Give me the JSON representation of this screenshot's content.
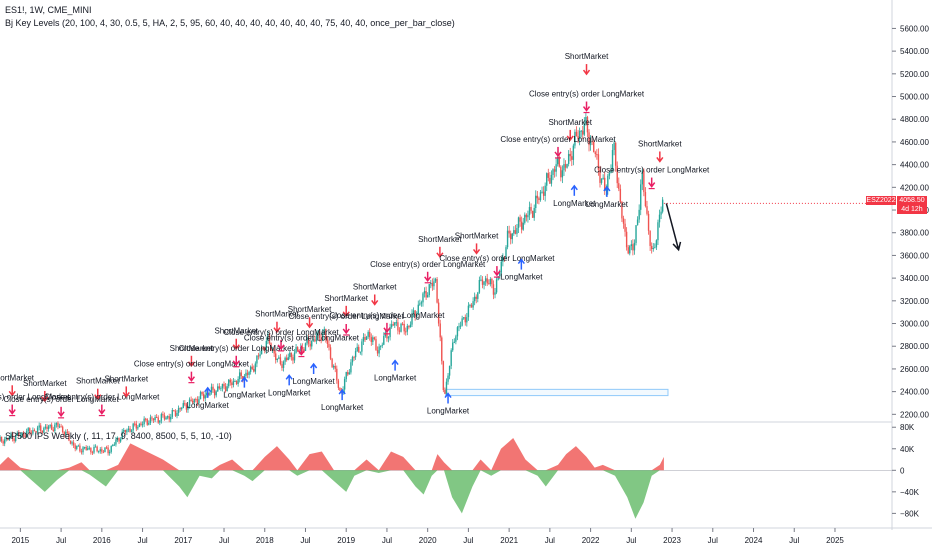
{
  "header": {
    "symbol_line": "ES1!, 1W, CME_MINI",
    "indicator_line": "Bj Key Levels (20, 100, 4, 30, 0.5, 5, HA, 2, 5, 95, 60, 40, 40, 40, 40, 40, 40, 40, 75, 40, 40, once_per_bar_close)",
    "lower_indicator_line": "SP500 IPS Weekly (, 11, 17, 9, 8400, 8500, 5, 5, 10, -10)"
  },
  "price_tag": {
    "symbol": "ESZ2022",
    "price": "4058.50",
    "countdown": "4d 12h"
  },
  "colors": {
    "bull": "#26a69a",
    "bear": "#ef5350",
    "long_arrow": "#2962ff",
    "short_arrow": "#f23645",
    "close_arrow": "#e91e63",
    "pos_area": "#ef5350",
    "neg_area": "#4caf50",
    "tag_bg": "#f23645"
  },
  "chart_data": [
    {
      "type": "candlestick",
      "title": "ES1!, 1W, CME_MINI",
      "x_labels": [
        "2015",
        "Jul",
        "2016",
        "Jul",
        "2017",
        "Jul",
        "2018",
        "Jul",
        "2019",
        "Jul",
        "2020",
        "Jul",
        "2021",
        "Jul",
        "2022",
        "Jul",
        "2023",
        "Jul",
        "2024",
        "Jul",
        "2025"
      ],
      "y_ticks": [
        "2200.00",
        "2400.00",
        "2600.00",
        "2800.00",
        "3000.00",
        "3200.00",
        "3400.00",
        "3600.00",
        "3800.00",
        "4000.00",
        "4200.00",
        "4400.00",
        "4600.00",
        "4800.00",
        "5000.00",
        "5200.00",
        "5400.00",
        "5600.00"
      ],
      "ylim": [
        2150,
        5780
      ],
      "x_range": [
        2014.75,
        2025.7
      ],
      "last_price": 4058.5,
      "price_path": [
        [
          2014.75,
          1960
        ],
        [
          2015.2,
          2060
        ],
        [
          2015.5,
          2100
        ],
        [
          2015.7,
          1900
        ],
        [
          2016.1,
          1880
        ],
        [
          2016.3,
          2050
        ],
        [
          2016.6,
          2150
        ],
        [
          2016.85,
          2180
        ],
        [
          2017.0,
          2260
        ],
        [
          2017.3,
          2380
        ],
        [
          2017.6,
          2470
        ],
        [
          2017.85,
          2580
        ],
        [
          2018.05,
          2860
        ],
        [
          2018.2,
          2640
        ],
        [
          2018.5,
          2800
        ],
        [
          2018.75,
          2920
        ],
        [
          2018.95,
          2380
        ],
        [
          2019.1,
          2700
        ],
        [
          2019.3,
          2920
        ],
        [
          2019.4,
          2760
        ],
        [
          2019.6,
          3000
        ],
        [
          2019.75,
          2940
        ],
        [
          2020.0,
          3280
        ],
        [
          2020.12,
          3380
        ],
        [
          2020.22,
          2350
        ],
        [
          2020.35,
          2900
        ],
        [
          2020.55,
          3150
        ],
        [
          2020.7,
          3400
        ],
        [
          2020.85,
          3300
        ],
        [
          2021.0,
          3750
        ],
        [
          2021.3,
          4000
        ],
        [
          2021.6,
          4400
        ],
        [
          2021.7,
          4350
        ],
        [
          2021.85,
          4650
        ],
        [
          2021.95,
          4750
        ],
        [
          2022.05,
          4550
        ],
        [
          2022.2,
          4150
        ],
        [
          2022.3,
          4550
        ],
        [
          2022.45,
          3700
        ],
        [
          2022.55,
          3650
        ],
        [
          2022.65,
          4300
        ],
        [
          2022.72,
          3900
        ],
        [
          2022.78,
          3560
        ],
        [
          2022.85,
          3900
        ],
        [
          2022.9,
          4058.5
        ]
      ],
      "projection": [
        [
          2022.93,
          4058.5
        ],
        [
          2023.08,
          3650
        ]
      ],
      "marked_zone": {
        "x": [
          2020.22,
          2022.95
        ],
        "y": [
          2365,
          2420
        ]
      },
      "signals": [
        {
          "kind": "short",
          "label": "ShortMarket",
          "x": 2014.9,
          "y": 2500
        },
        {
          "kind": "close",
          "label": "Close entry(s) order LongMarket",
          "x": 2014.9,
          "y": 2330
        },
        {
          "kind": "short",
          "label": "ShortMarket",
          "x": 2015.3,
          "y": 2450
        },
        {
          "kind": "close",
          "label": "Close entry(s) order LongMarket",
          "x": 2015.5,
          "y": 2310
        },
        {
          "kind": "short",
          "label": "ShortMarket",
          "x": 2015.95,
          "y": 2470
        },
        {
          "kind": "close",
          "label": "Close entry(s) order LongMarket",
          "x": 2016.0,
          "y": 2330
        },
        {
          "kind": "short",
          "label": "ShortMarket",
          "x": 2016.3,
          "y": 2490
        },
        {
          "kind": "short",
          "label": "ShortMarket",
          "x": 2017.1,
          "y": 2760
        },
        {
          "kind": "close",
          "label": "Close entry(s) order LongMarket",
          "x": 2017.1,
          "y": 2620
        },
        {
          "kind": "long",
          "label": "LongMarket",
          "x": 2017.3,
          "y": 2310
        },
        {
          "kind": "short",
          "label": "ShortMarket",
          "x": 2017.65,
          "y": 2910
        },
        {
          "kind": "close",
          "label": "Close entry(s) order LongMarket",
          "x": 2017.65,
          "y": 2760
        },
        {
          "kind": "long",
          "label": "LongMarket",
          "x": 2017.75,
          "y": 2400
        },
        {
          "kind": "short",
          "label": "ShortMarket",
          "x": 2018.15,
          "y": 3060
        },
        {
          "kind": "close",
          "label": "Close entry(s) order LongMarket",
          "x": 2018.2,
          "y": 2900
        },
        {
          "kind": "short",
          "label": "ShortMarket",
          "x": 2018.55,
          "y": 3100
        },
        {
          "kind": "close",
          "label": "Close entry(s) order LongMarket",
          "x": 2018.45,
          "y": 2850
        },
        {
          "kind": "long",
          "label": "LongMarket",
          "x": 2018.3,
          "y": 2420
        },
        {
          "kind": "long",
          "label": "LongMarket",
          "x": 2018.6,
          "y": 2520
        },
        {
          "kind": "short",
          "label": "ShortMarket",
          "x": 2019.0,
          "y": 3200
        },
        {
          "kind": "close",
          "label": "Close entry(s) order LongMarket",
          "x": 2019.0,
          "y": 3040
        },
        {
          "kind": "long",
          "label": "LongMarket",
          "x": 2018.95,
          "y": 2290
        },
        {
          "kind": "short",
          "label": "ShortMarket",
          "x": 2019.35,
          "y": 3300
        },
        {
          "kind": "close",
          "label": "Close entry(s) order LongMarket",
          "x": 2019.5,
          "y": 3050
        },
        {
          "kind": "long",
          "label": "LongMarket",
          "x": 2019.6,
          "y": 2550
        },
        {
          "kind": "short",
          "label": "ShortMarket",
          "x": 2020.15,
          "y": 3720
        },
        {
          "kind": "close",
          "label": "Close entry(s) order LongMarket",
          "x": 2020.0,
          "y": 3500
        },
        {
          "kind": "long",
          "label": "LongMarket",
          "x": 2020.25,
          "y": 2260
        },
        {
          "kind": "short",
          "label": "ShortMarket",
          "x": 2020.6,
          "y": 3750
        },
        {
          "kind": "close",
          "label": "Close entry(s) order LongMarket",
          "x": 2020.85,
          "y": 3550
        },
        {
          "kind": "long",
          "label": "LongMarket",
          "x": 2021.15,
          "y": 3440
        },
        {
          "kind": "short",
          "label": "ShortMarket",
          "x": 2021.75,
          "y": 4750
        },
        {
          "kind": "close",
          "label": "Close entry(s) order LongMarket",
          "x": 2021.6,
          "y": 4600
        },
        {
          "kind": "long",
          "label": "LongMarket",
          "x": 2021.8,
          "y": 4090
        },
        {
          "kind": "short",
          "label": "ShortMarket",
          "x": 2021.95,
          "y": 5330
        },
        {
          "kind": "close",
          "label": "Close entry(s) order LongMarket",
          "x": 2021.95,
          "y": 5000
        },
        {
          "kind": "long",
          "label": "LongMarket",
          "x": 2022.2,
          "y": 4080
        },
        {
          "kind": "short",
          "label": "ShortMarket",
          "x": 2022.85,
          "y": 4560
        },
        {
          "kind": "close",
          "label": "Close entry(s) order LongMarket",
          "x": 2022.75,
          "y": 4330
        }
      ]
    },
    {
      "type": "area",
      "title": "SP500 IPS Weekly (, 11, 17, 9, 8400, 8500, 5, 5, 10, -10)",
      "y_ticks": [
        "80K",
        "40K",
        "0",
        "−40K",
        "−80K"
      ],
      "ylim": [
        -96000,
        86000
      ],
      "x_range": [
        2014.75,
        2025.7
      ],
      "series": [
        [
          2014.75,
          10000
        ],
        [
          2014.85,
          25000
        ],
        [
          2015.0,
          5000
        ],
        [
          2015.15,
          -20000
        ],
        [
          2015.3,
          -40000
        ],
        [
          2015.45,
          -18000
        ],
        [
          2015.6,
          5000
        ],
        [
          2015.75,
          15000
        ],
        [
          2015.85,
          -8000
        ],
        [
          2016.05,
          -30000
        ],
        [
          2016.2,
          10000
        ],
        [
          2016.35,
          50000
        ],
        [
          2016.55,
          35000
        ],
        [
          2016.75,
          20000
        ],
        [
          2016.95,
          -30000
        ],
        [
          2017.05,
          -50000
        ],
        [
          2017.2,
          -10000
        ],
        [
          2017.35,
          -15000
        ],
        [
          2017.45,
          10000
        ],
        [
          2017.6,
          20000
        ],
        [
          2017.75,
          -10000
        ],
        [
          2017.85,
          -20000
        ],
        [
          2018.0,
          25000
        ],
        [
          2018.15,
          45000
        ],
        [
          2018.3,
          20000
        ],
        [
          2018.4,
          -10000
        ],
        [
          2018.55,
          30000
        ],
        [
          2018.7,
          35000
        ],
        [
          2018.85,
          -20000
        ],
        [
          2019.0,
          -40000
        ],
        [
          2019.1,
          -10000
        ],
        [
          2019.25,
          20000
        ],
        [
          2019.4,
          -5000
        ],
        [
          2019.55,
          35000
        ],
        [
          2019.7,
          25000
        ],
        [
          2019.85,
          -30000
        ],
        [
          2019.95,
          -45000
        ],
        [
          2020.05,
          -10000
        ],
        [
          2020.12,
          30000
        ],
        [
          2020.2,
          15000
        ],
        [
          2020.3,
          -50000
        ],
        [
          2020.42,
          -80000
        ],
        [
          2020.55,
          -30000
        ],
        [
          2020.65,
          20000
        ],
        [
          2020.78,
          -10000
        ],
        [
          2020.9,
          40000
        ],
        [
          2021.05,
          60000
        ],
        [
          2021.2,
          20000
        ],
        [
          2021.35,
          -10000
        ],
        [
          2021.45,
          -30000
        ],
        [
          2021.6,
          10000
        ],
        [
          2021.7,
          30000
        ],
        [
          2021.82,
          45000
        ],
        [
          2021.95,
          25000
        ],
        [
          2022.05,
          5000
        ],
        [
          2022.15,
          10000
        ],
        [
          2022.3,
          -10000
        ],
        [
          2022.45,
          -50000
        ],
        [
          2022.55,
          -90000
        ],
        [
          2022.65,
          -60000
        ],
        [
          2022.75,
          -10000
        ],
        [
          2022.85,
          10000
        ],
        [
          2022.9,
          25000
        ]
      ]
    }
  ]
}
